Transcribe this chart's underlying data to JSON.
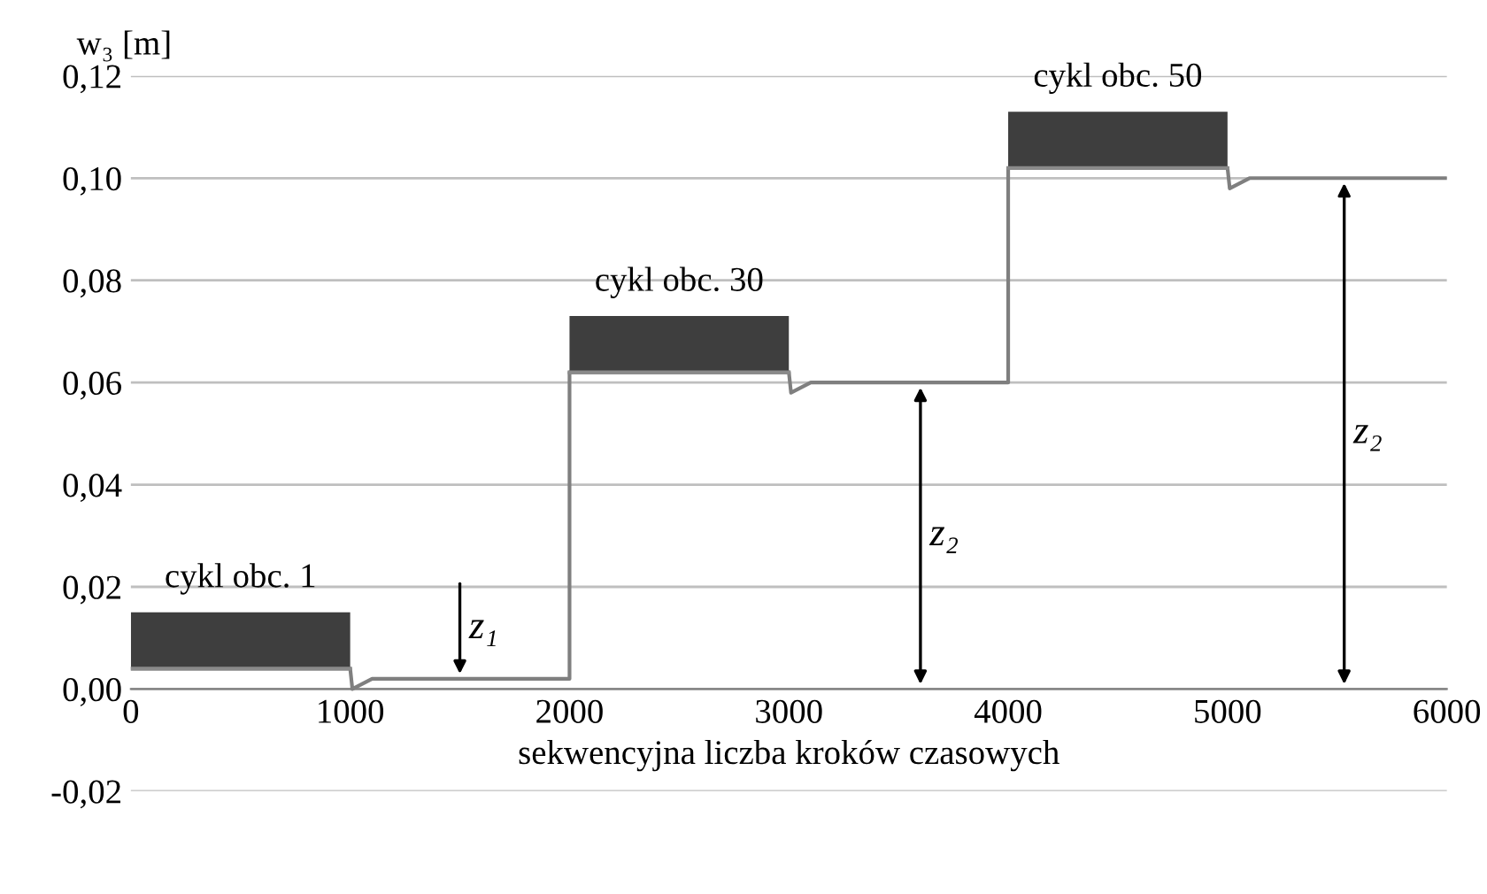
{
  "chart_data": {
    "type": "line",
    "xlabel": "sekwencyjna liczba kroków czasowych",
    "ylabel": "w₃ [m]",
    "xlim": [
      0,
      6000
    ],
    "xticks": [
      0,
      1000,
      2000,
      3000,
      4000,
      5000,
      6000
    ],
    "ylim": [
      -0.02,
      0.12
    ],
    "yticks": [
      {
        "value": -0.02,
        "label": "-0,02"
      },
      {
        "value": 0,
        "label": "0,00"
      },
      {
        "value": 0.02,
        "label": "0,02"
      },
      {
        "value": 0.04,
        "label": "0,04"
      },
      {
        "value": 0.06,
        "label": "0,06"
      },
      {
        "value": 0.08,
        "label": "0,08"
      },
      {
        "value": 0.1,
        "label": "0,10"
      },
      {
        "value": 0.12,
        "label": "0,12"
      }
    ],
    "grid": "y",
    "legend": false,
    "series": [
      {
        "color": "#7f7f7f",
        "x": [
          0,
          1000,
          1010,
          1100,
          2000,
          2000,
          3000,
          3010,
          3100,
          4000,
          4000,
          5000,
          5010,
          5100,
          6000
        ],
        "values": [
          0.004,
          0.004,
          0.0,
          0.002,
          0.002,
          0.062,
          0.062,
          0.058,
          0.06,
          0.06,
          0.102,
          0.102,
          0.098,
          0.1,
          0.1
        ]
      },
      {
        "color": "#8a8a8a",
        "x": [
          0,
          1000
        ],
        "values": [
          0.004,
          0.004
        ],
        "lower": [
          0.004,
          0.004
        ],
        "upper": [
          0.015,
          0.015
        ]
      },
      {
        "color": "#8a8a8a",
        "x": [
          2000,
          3000
        ],
        "values": [
          0.062,
          0.062
        ],
        "lower": [
          0.062,
          0.062
        ],
        "upper": [
          0.073,
          0.073
        ]
      },
      {
        "color": "#8a8a8a",
        "x": [
          4000,
          5000
        ],
        "values": [
          0.102,
          0.102
        ],
        "lower": [
          0.102,
          0.102
        ],
        "upper": [
          0.113,
          0.113
        ]
      }
    ],
    "annotations": [
      {
        "text": "cykl obc. 1",
        "x": 500,
        "y": 0.015
      },
      {
        "text": "cykl obc. 30",
        "x": 2500,
        "y": 0.073
      },
      {
        "text": "cykl obc. 50",
        "x": 4500,
        "y": 0.113
      },
      "z₁",
      "z₂",
      "z₂"
    ]
  }
}
